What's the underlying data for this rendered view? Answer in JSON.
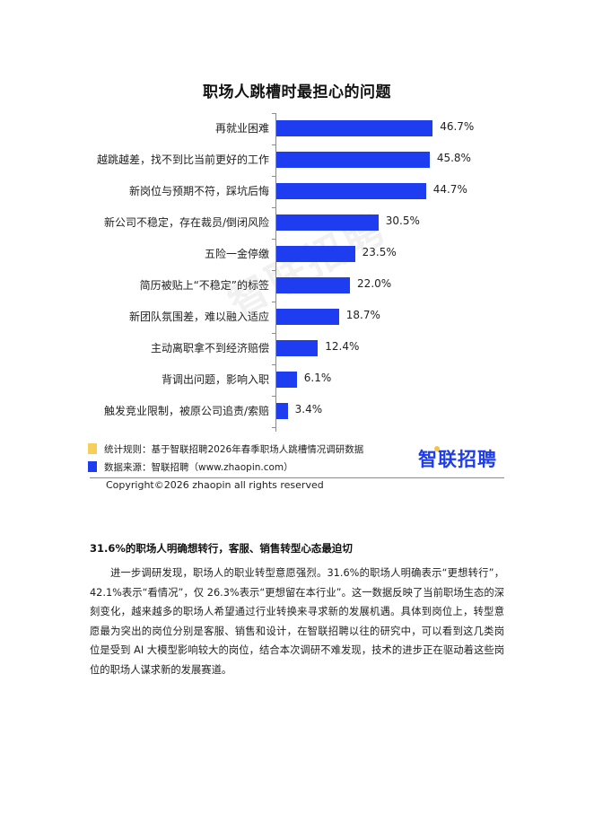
{
  "chart_data": {
    "type": "bar",
    "orientation": "horizontal",
    "title": "职场人跳槽时最担心的问题",
    "xlabel": "",
    "ylabel": "",
    "categories": [
      "再就业困难",
      "越跳越差，找不到比当前更好的工作",
      "新岗位与预期不符，踩坑后悔",
      "新公司不稳定，存在裁员/倒闭风险",
      "五险一金停缴",
      "简历被贴上“不稳定”的标签",
      "新团队氛围差，难以融入适应",
      "主动离职拿不到经济赔偿",
      "背调出问题，影响入职",
      "触发竞业限制，被原公司追责/索赔"
    ],
    "values": [
      46.7,
      45.8,
      44.7,
      30.5,
      23.5,
      22.0,
      18.7,
      12.4,
      6.1,
      3.4
    ],
    "value_labels": [
      "46.7%",
      "45.8%",
      "44.7%",
      "30.5%",
      "23.5%",
      "22.0%",
      "18.7%",
      "12.4%",
      "6.1%",
      "3.4%"
    ],
    "unit": "%",
    "bar_color": "#1e3cf0",
    "grid": false,
    "legend_position": "bottom-left"
  },
  "watermark": "智联招聘",
  "legend": {
    "items": [
      {
        "label": "统计规则：基于智联招聘2026年春季职场人跳槽情况调研数据",
        "color": "#f6cf5a"
      },
      {
        "label": "数据来源：智联招聘（www.zhaopin.com）",
        "color": "#1e3cf0"
      }
    ]
  },
  "brand": {
    "name": "智联招聘",
    "color": "#1e3cf0",
    "dot_color": "#f6c343"
  },
  "copyright": "Copyright©2026 zhaopin all rights reserved",
  "section": {
    "heading": "31.6%的职场人明确想转行，客服、销售转型心态最迫切",
    "paragraph": "进一步调研发现，职场人的职业转型意愿强烈。31.6%的职场人明确表示“更想转行”，42.1%表示“看情况”，仅 26.3%表示“更想留在本行业”。这一数据反映了当前职场生态的深刻变化，越来越多的职场人希望通过行业转换来寻求新的发展机遇。具体到岗位上，转型意愿最为突出的岗位分别是客服、销售和设计，在智联招聘以往的研究中，可以看到这几类岗位是受到 AI 大模型影响较大的岗位，结合本次调研不难发现，技术的进步正在驱动着这些岗位的职场人谋求新的发展赛道。"
  }
}
